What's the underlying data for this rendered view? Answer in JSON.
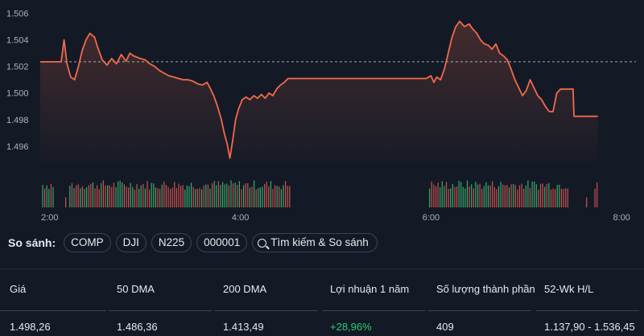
{
  "chart_data": {
    "type": "line",
    "y_ticks": [
      "1.506",
      "1.504",
      "1.502",
      "1.500",
      "1.498",
      "1.496"
    ],
    "y_tick_values": [
      1.506,
      1.504,
      1.502,
      1.5,
      1.498,
      1.496
    ],
    "ylim": [
      1.4949,
      1.5064
    ],
    "x_ticks": [
      "2:00",
      "4:00",
      "6:00",
      "8:00"
    ],
    "x_tick_values": [
      2,
      4,
      6,
      8
    ],
    "xlim": [
      1.9,
      8.15
    ],
    "reference_value": 1.50235,
    "line_color": "#f26a4b",
    "price_series": [
      [
        1.9,
        1.50235
      ],
      [
        2.12,
        1.50235
      ],
      [
        2.15,
        1.504
      ],
      [
        2.18,
        1.5022
      ],
      [
        2.22,
        1.5012
      ],
      [
        2.26,
        1.501
      ],
      [
        2.3,
        1.502
      ],
      [
        2.34,
        1.5032
      ],
      [
        2.38,
        1.504
      ],
      [
        2.42,
        1.5045
      ],
      [
        2.47,
        1.5042
      ],
      [
        2.5,
        1.5035
      ],
      [
        2.55,
        1.5025
      ],
      [
        2.6,
        1.5021
      ],
      [
        2.65,
        1.5026
      ],
      [
        2.7,
        1.5022
      ],
      [
        2.75,
        1.5029
      ],
      [
        2.8,
        1.5024
      ],
      [
        2.84,
        1.503
      ],
      [
        2.88,
        1.5028
      ],
      [
        2.95,
        1.5026
      ],
      [
        3.0,
        1.5025
      ],
      [
        3.05,
        1.5022
      ],
      [
        3.1,
        1.502
      ],
      [
        3.15,
        1.5017
      ],
      [
        3.2,
        1.5015
      ],
      [
        3.25,
        1.5013
      ],
      [
        3.3,
        1.5012
      ],
      [
        3.35,
        1.5011
      ],
      [
        3.4,
        1.501
      ],
      [
        3.45,
        1.501
      ],
      [
        3.5,
        1.5009
      ],
      [
        3.55,
        1.5007
      ],
      [
        3.6,
        1.5006
      ],
      [
        3.65,
        1.5008
      ],
      [
        3.68,
        1.5004
      ],
      [
        3.72,
        1.4998
      ],
      [
        3.76,
        1.499
      ],
      [
        3.8,
        1.498
      ],
      [
        3.83,
        1.497
      ],
      [
        3.86,
        1.4962
      ],
      [
        3.89,
        1.4951
      ],
      [
        3.92,
        1.4965
      ],
      [
        3.95,
        1.498
      ],
      [
        3.98,
        1.4988
      ],
      [
        4.02,
        1.4995
      ],
      [
        4.06,
        1.4997
      ],
      [
        4.1,
        1.4995
      ],
      [
        4.14,
        1.4998
      ],
      [
        4.18,
        1.4996
      ],
      [
        4.22,
        1.4999
      ],
      [
        4.26,
        1.4996
      ],
      [
        4.3,
        1.5
      ],
      [
        4.34,
        1.4998
      ],
      [
        4.38,
        1.5003
      ],
      [
        4.42,
        1.5006
      ],
      [
        4.46,
        1.5008
      ],
      [
        4.5,
        1.5011
      ],
      [
        4.52,
        1.5011
      ],
      [
        5.95,
        1.5011
      ],
      [
        6.0,
        1.5013
      ],
      [
        6.03,
        1.5008
      ],
      [
        6.06,
        1.5012
      ],
      [
        6.1,
        1.501
      ],
      [
        6.14,
        1.5018
      ],
      [
        6.18,
        1.503
      ],
      [
        6.22,
        1.5042
      ],
      [
        6.26,
        1.505
      ],
      [
        6.3,
        1.5054
      ],
      [
        6.35,
        1.505
      ],
      [
        6.4,
        1.5052
      ],
      [
        6.44,
        1.5048
      ],
      [
        6.48,
        1.5045
      ],
      [
        6.52,
        1.504
      ],
      [
        6.56,
        1.5037
      ],
      [
        6.6,
        1.5036
      ],
      [
        6.64,
        1.5033
      ],
      [
        6.68,
        1.5037
      ],
      [
        6.72,
        1.503
      ],
      [
        6.76,
        1.5028
      ],
      [
        6.8,
        1.5025
      ],
      [
        6.84,
        1.5018
      ],
      [
        6.88,
        1.501
      ],
      [
        6.92,
        1.5004
      ],
      [
        6.96,
        1.4998
      ],
      [
        7.0,
        1.5002
      ],
      [
        7.04,
        1.501
      ],
      [
        7.08,
        1.5004
      ],
      [
        7.12,
        1.4998
      ],
      [
        7.16,
        1.4995
      ],
      [
        7.2,
        1.499
      ],
      [
        7.24,
        1.4986
      ],
      [
        7.28,
        1.4986
      ],
      [
        7.32,
        1.5
      ],
      [
        7.36,
        1.5003
      ],
      [
        7.4,
        1.5003
      ],
      [
        7.49,
        1.5003
      ],
      [
        7.5,
        1.49825
      ],
      [
        7.75,
        1.49825
      ]
    ],
    "volume_session_1": {
      "start": 1.92,
      "end": 4.52,
      "gap": [
        2.03,
        2.2
      ]
    },
    "volume_session_2": {
      "start": 5.98,
      "end": 7.75,
      "gap": [
        7.45,
        7.7
      ]
    }
  },
  "compare": {
    "label": "So sánh:",
    "chips": [
      "COMP",
      "DJI",
      "N225",
      "000001"
    ],
    "search_label": "Tìm kiếm & So sánh",
    "search_icon": "search-icon"
  },
  "stats": [
    {
      "label": "Giá",
      "value": "1.498,26",
      "positive": false
    },
    {
      "label": "50 DMA",
      "value": "1.486,36",
      "positive": false
    },
    {
      "label": "200 DMA",
      "value": "1.413,49",
      "positive": false
    },
    {
      "label": "Lợi nhuận 1 năm",
      "value": "+28,96%",
      "positive": true
    },
    {
      "label": "Số lượng thành phần",
      "value": "409",
      "positive": false
    },
    {
      "label": "52-Wk H/L",
      "value": "1.137,90 - 1.536,45",
      "positive": false
    }
  ],
  "colors": {
    "background": "#131a26",
    "line": "#f26a4b",
    "volume_up": "#3cb371",
    "volume_down": "#d9534f",
    "positive": "#2ecc71"
  }
}
